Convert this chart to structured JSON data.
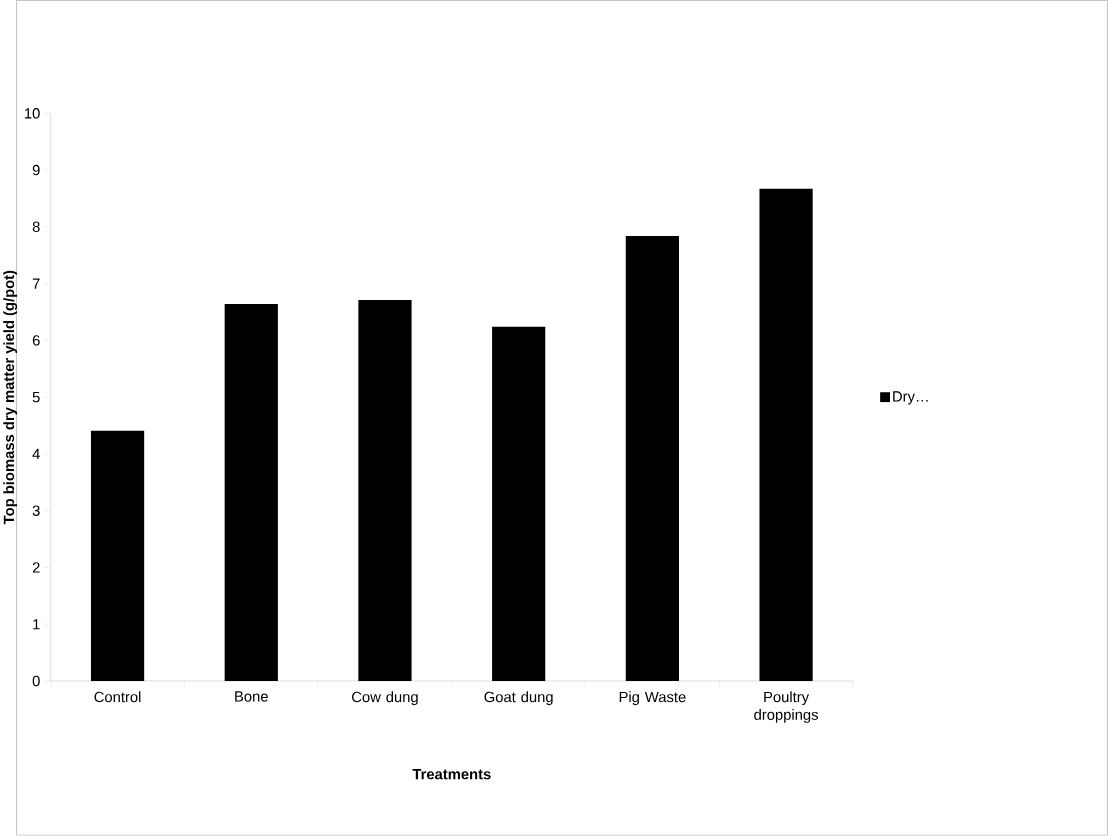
{
  "chart_data": {
    "type": "bar",
    "xlabel": "Treatments",
    "ylabel": "Top biomass dry matter yield (g/pot)",
    "categories": [
      "Control",
      "Bone",
      "Cow dung",
      "Goat dung",
      "Pig Waste",
      "Poultry droppings"
    ],
    "series": [
      {
        "name": "Dry…",
        "color": "#000000",
        "values": [
          4.41,
          6.64,
          6.71,
          6.24,
          7.84,
          8.67
        ]
      }
    ],
    "ylim": [
      0,
      10
    ],
    "yticks": [
      0,
      1,
      2,
      3,
      4,
      5,
      6,
      7,
      8,
      9,
      10
    ],
    "legend": "right",
    "grid": false
  }
}
